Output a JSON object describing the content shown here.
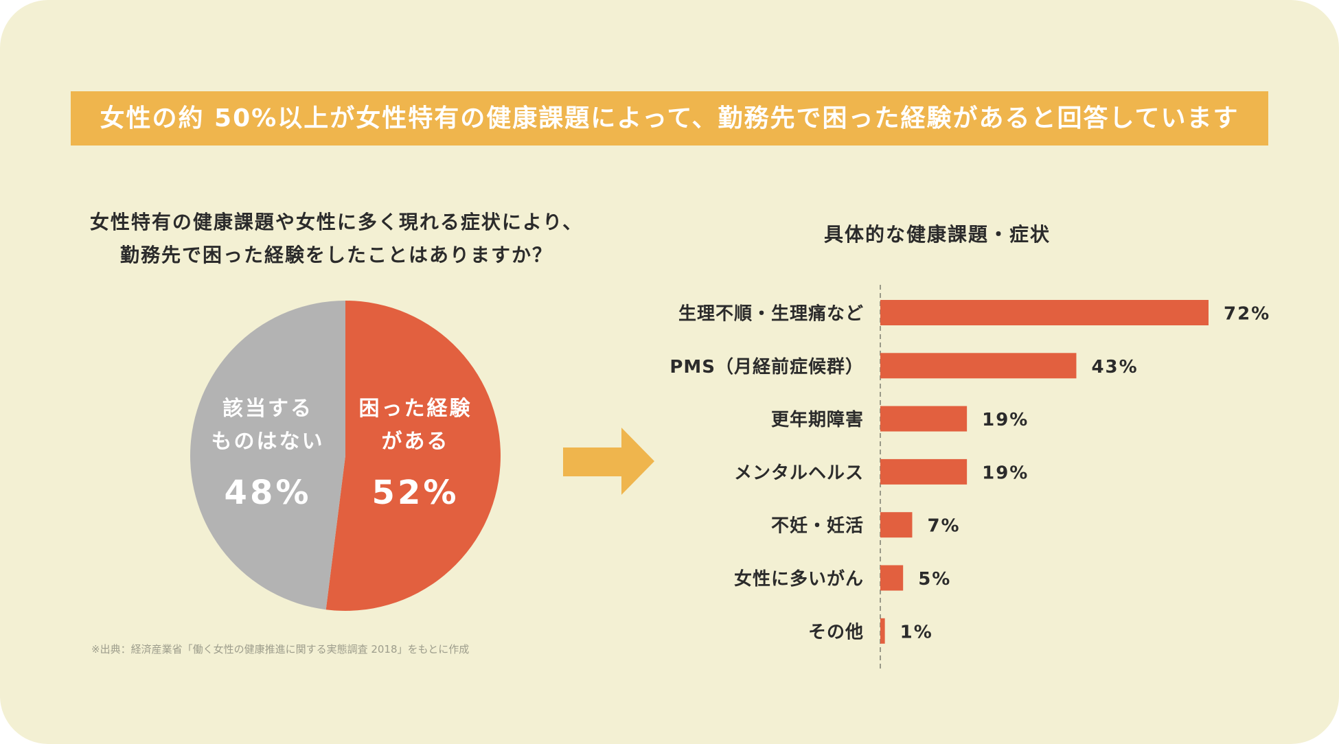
{
  "banner": {
    "title": "女性の約 50%以上が女性特有の健康課題によって、勤務先で困った経験があると回答しています"
  },
  "colors": {
    "background": "#f3f0d3",
    "banner": "#efb54d",
    "accent": "#e2603f",
    "gray": "#b3b3b3",
    "arrow": "#efb54d"
  },
  "pie": {
    "question_line1": "女性特有の健康課題や女性に多く現れる症状により、",
    "question_line2": "勤務先で困った経験をしたことはありますか？",
    "source": "※出典：経済産業省「働く女性の健康推進に関する実態調査 2018」をもとに作成"
  },
  "bars": {
    "title": "具体的な健康課題・症状"
  },
  "chart_data": [
    {
      "type": "pie",
      "title": "女性特有の健康課題や女性に多く現れる症状により、勤務先で困った経験をしたことはありますか？",
      "slices": [
        {
          "label_line1": "困った経験",
          "label_line2": "がある",
          "value": 52,
          "display": "52%",
          "color": "#e2603f"
        },
        {
          "label_line1": "該当する",
          "label_line2": "ものはない",
          "value": 48,
          "display": "48%",
          "color": "#b3b3b3"
        }
      ]
    },
    {
      "type": "bar",
      "orientation": "horizontal",
      "title": "具体的な健康課題・症状",
      "categories": [
        "生理不順・生理痛など",
        "PMS（月経前症候群）",
        "更年期障害",
        "メンタルヘルス",
        "不妊・妊活",
        "女性に多いがん",
        "その他"
      ],
      "values": [
        72,
        43,
        19,
        19,
        7,
        5,
        1
      ],
      "labels": [
        "72%",
        "43%",
        "19%",
        "19%",
        "7%",
        "5%",
        "1%"
      ],
      "xlim": [
        0,
        72
      ],
      "color": "#e2603f"
    }
  ]
}
